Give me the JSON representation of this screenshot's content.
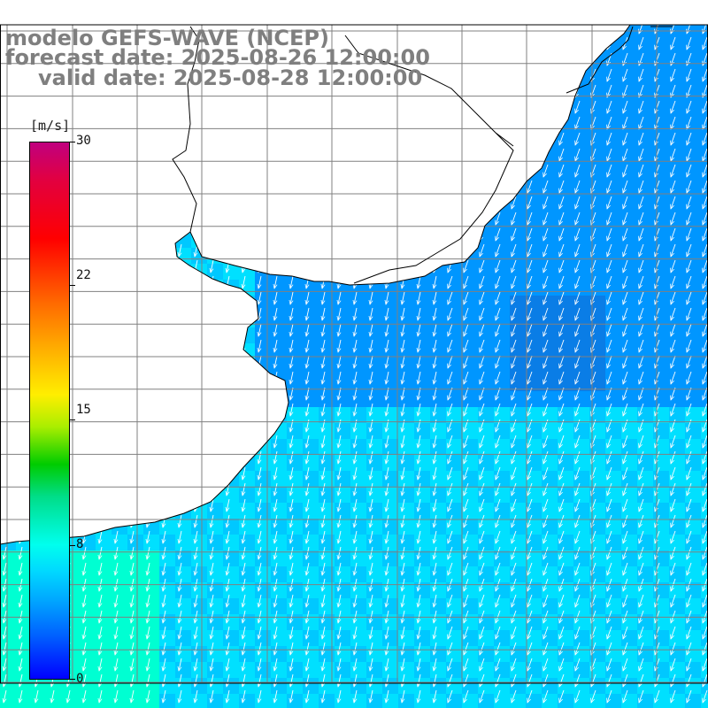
{
  "title": {
    "model": "modelo GEFS-WAVE (NCEP)",
    "forecast": "forecast date: 2025-08-26 12:00:00",
    "valid": "valid date: 2025-08-28 12:00:00"
  },
  "colorbar": {
    "unit": "[m/s]",
    "ticks": [
      "30",
      "22",
      "15",
      "8",
      "0"
    ],
    "tick_values": [
      30,
      22,
      15,
      8,
      0
    ],
    "range": [
      0,
      30
    ]
  },
  "map": {
    "field": "wind speed and direction",
    "dominant_speed_ms": 7,
    "dominant_direction": "from northeast, flowing toward south-southwest",
    "land_color": "#ffffff",
    "grid_color": "#808080",
    "coast_color": "#000000",
    "sea_colors": [
      "#00c8ff",
      "#00e0ff",
      "#0096ff",
      "#0a7de6",
      "#00ffd2"
    ],
    "arrow_color": "#ffffff"
  }
}
